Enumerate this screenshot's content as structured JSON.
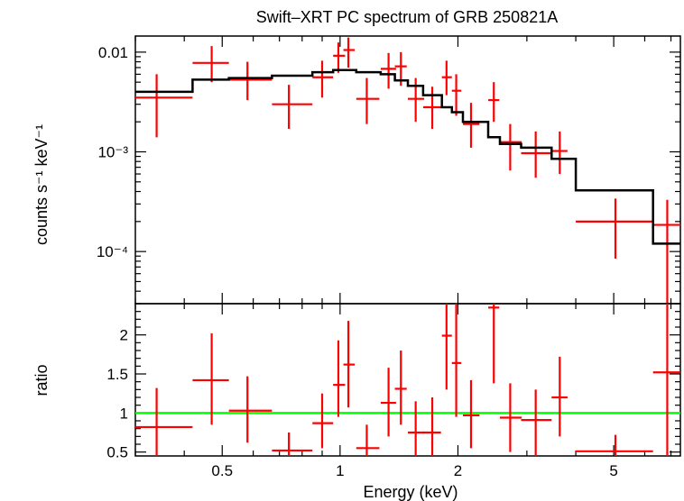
{
  "chart_data": [
    {
      "panel": "spectrum",
      "type": "scatter",
      "title": "Swift–XRT PC spectrum of GRB 250821A",
      "xlabel": "",
      "ylabel": "counts s⁻¹ keV⁻¹",
      "xscale": "log",
      "yscale": "log",
      "xlim": [
        0.3,
        7.4
      ],
      "ylim": [
        3e-05,
        0.0145
      ],
      "y_tick_labels": [
        {
          "value": 0.01,
          "text": "0.01"
        },
        {
          "value": 0.001,
          "text": "10⁻³"
        },
        {
          "value": 0.0001,
          "text": "10⁻⁴"
        }
      ],
      "series": [
        {
          "role": "data",
          "color": "#ff0000",
          "points": [
            {
              "x": 0.34,
              "xlo": 0.3,
              "xhi": 0.42,
              "y": 0.0035,
              "ylo": 0.0014,
              "yhi": 0.006
            },
            {
              "x": 0.47,
              "xlo": 0.42,
              "xhi": 0.52,
              "y": 0.0078,
              "ylo": 0.005,
              "yhi": 0.0115
            },
            {
              "x": 0.58,
              "xlo": 0.52,
              "xhi": 0.67,
              "y": 0.0053,
              "ylo": 0.0033,
              "yhi": 0.008
            },
            {
              "x": 0.74,
              "xlo": 0.67,
              "xhi": 0.85,
              "y": 0.003,
              "ylo": 0.0017,
              "yhi": 0.0047
            },
            {
              "x": 0.9,
              "xlo": 0.85,
              "xhi": 0.96,
              "y": 0.0056,
              "ylo": 0.0035,
              "yhi": 0.0082
            },
            {
              "x": 0.99,
              "xlo": 0.96,
              "xhi": 1.03,
              "y": 0.0092,
              "ylo": 0.0062,
              "yhi": 0.0125
            },
            {
              "x": 1.05,
              "xlo": 1.02,
              "xhi": 1.09,
              "y": 0.0105,
              "ylo": 0.007,
              "yhi": 0.014
            },
            {
              "x": 1.17,
              "xlo": 1.1,
              "xhi": 1.26,
              "y": 0.0034,
              "ylo": 0.0019,
              "yhi": 0.0055
            },
            {
              "x": 1.33,
              "xlo": 1.27,
              "xhi": 1.39,
              "y": 0.0068,
              "ylo": 0.0043,
              "yhi": 0.0098
            },
            {
              "x": 1.43,
              "xlo": 1.38,
              "xhi": 1.48,
              "y": 0.0072,
              "ylo": 0.0046,
              "yhi": 0.01
            },
            {
              "x": 1.56,
              "xlo": 1.49,
              "xhi": 1.64,
              "y": 0.0034,
              "ylo": 0.002,
              "yhi": 0.0055
            },
            {
              "x": 1.72,
              "xlo": 1.63,
              "xhi": 1.81,
              "y": 0.0028,
              "ylo": 0.0017,
              "yhi": 0.0045
            },
            {
              "x": 1.87,
              "xlo": 1.82,
              "xhi": 1.93,
              "y": 0.0056,
              "ylo": 0.0037,
              "yhi": 0.0082
            },
            {
              "x": 1.98,
              "xlo": 1.93,
              "xhi": 2.04,
              "y": 0.0041,
              "ylo": 0.0023,
              "yhi": 0.006
            },
            {
              "x": 2.16,
              "xlo": 2.06,
              "xhi": 2.27,
              "y": 0.0019,
              "ylo": 0.0011,
              "yhi": 0.0031
            },
            {
              "x": 2.47,
              "xlo": 2.39,
              "xhi": 2.55,
              "y": 0.0033,
              "ylo": 0.002,
              "yhi": 0.005
            },
            {
              "x": 2.72,
              "xlo": 2.56,
              "xhi": 2.91,
              "y": 0.00125,
              "ylo": 0.00065,
              "yhi": 0.0019
            },
            {
              "x": 3.16,
              "xlo": 2.9,
              "xhi": 3.47,
              "y": 0.00097,
              "ylo": 0.00055,
              "yhi": 0.0016
            },
            {
              "x": 3.64,
              "xlo": 3.47,
              "xhi": 3.81,
              "y": 0.00102,
              "ylo": 0.0006,
              "yhi": 0.0016
            },
            {
              "x": 5.05,
              "xlo": 4.0,
              "xhi": 6.3,
              "y": 0.0002,
              "ylo": 8.5e-05,
              "yhi": 0.00034
            },
            {
              "x": 6.85,
              "xlo": 6.3,
              "xhi": 7.4,
              "y": 0.000185,
              "ylo": 3e-05,
              "yhi": 0.00033
            }
          ]
        },
        {
          "role": "model",
          "color": "#000000",
          "steps": [
            {
              "x0": 0.3,
              "x1": 0.42,
              "y": 0.004
            },
            {
              "x0": 0.42,
              "x1": 0.52,
              "y": 0.0053
            },
            {
              "x0": 0.52,
              "x1": 0.67,
              "y": 0.0055
            },
            {
              "x0": 0.67,
              "x1": 0.85,
              "y": 0.0058
            },
            {
              "x0": 0.85,
              "x1": 0.96,
              "y": 0.0063
            },
            {
              "x0": 0.96,
              "x1": 1.1,
              "y": 0.0066
            },
            {
              "x0": 1.1,
              "x1": 1.27,
              "y": 0.0063
            },
            {
              "x0": 1.27,
              "x1": 1.38,
              "y": 0.006
            },
            {
              "x0": 1.38,
              "x1": 1.49,
              "y": 0.0052
            },
            {
              "x0": 1.49,
              "x1": 1.63,
              "y": 0.0046
            },
            {
              "x0": 1.63,
              "x1": 1.82,
              "y": 0.0037
            },
            {
              "x0": 1.82,
              "x1": 1.93,
              "y": 0.0028
            },
            {
              "x0": 1.93,
              "x1": 2.06,
              "y": 0.0025
            },
            {
              "x0": 2.06,
              "x1": 2.39,
              "y": 0.002
            },
            {
              "x0": 2.39,
              "x1": 2.56,
              "y": 0.0014
            },
            {
              "x0": 2.56,
              "x1": 2.9,
              "y": 0.0012
            },
            {
              "x0": 2.9,
              "x1": 3.47,
              "y": 0.0011
            },
            {
              "x0": 3.47,
              "x1": 4.0,
              "y": 0.00085
            },
            {
              "x0": 4.0,
              "x1": 6.3,
              "y": 0.00041
            },
            {
              "x0": 6.3,
              "x1": 7.4,
              "y": 0.00012
            }
          ]
        }
      ]
    },
    {
      "panel": "ratio",
      "type": "scatter",
      "title": "",
      "xlabel": "Energy (keV)",
      "ylabel": "ratio",
      "xscale": "log",
      "yscale": "linear",
      "xlim": [
        0.3,
        7.4
      ],
      "ylim": [
        0.45,
        2.4
      ],
      "x_tick_labels": [
        {
          "value": 0.5,
          "text": "0.5"
        },
        {
          "value": 1,
          "text": "1"
        },
        {
          "value": 2,
          "text": "2"
        },
        {
          "value": 5,
          "text": "5"
        }
      ],
      "y_tick_labels": [
        {
          "value": 0.5,
          "text": "0.5"
        },
        {
          "value": 1,
          "text": "1"
        },
        {
          "value": 1.5,
          "text": "1.5"
        },
        {
          "value": 2,
          "text": "2"
        }
      ],
      "reference_line": {
        "y": 1,
        "color": "#00ff00"
      },
      "series": [
        {
          "role": "data",
          "color": "#ff0000",
          "points": [
            {
              "x": 0.34,
              "xlo": 0.3,
              "xhi": 0.42,
              "y": 0.82,
              "ylo": 0.45,
              "yhi": 1.32
            },
            {
              "x": 0.47,
              "xlo": 0.42,
              "xhi": 0.52,
              "y": 1.42,
              "ylo": 0.85,
              "yhi": 2.02
            },
            {
              "x": 0.58,
              "xlo": 0.52,
              "xhi": 0.67,
              "y": 1.03,
              "ylo": 0.62,
              "yhi": 1.47
            },
            {
              "x": 0.74,
              "xlo": 0.67,
              "xhi": 0.85,
              "y": 0.52,
              "ylo": 0.45,
              "yhi": 0.75
            },
            {
              "x": 0.9,
              "xlo": 0.85,
              "xhi": 0.96,
              "y": 0.87,
              "ylo": 0.55,
              "yhi": 1.25
            },
            {
              "x": 0.99,
              "xlo": 0.96,
              "xhi": 1.03,
              "y": 1.36,
              "ylo": 0.95,
              "yhi": 1.93
            },
            {
              "x": 1.05,
              "xlo": 1.02,
              "xhi": 1.09,
              "y": 1.62,
              "ylo": 1.07,
              "yhi": 2.18
            },
            {
              "x": 1.17,
              "xlo": 1.1,
              "xhi": 1.26,
              "y": 0.55,
              "ylo": 0.45,
              "yhi": 0.85
            },
            {
              "x": 1.33,
              "xlo": 1.27,
              "xhi": 1.39,
              "y": 1.13,
              "ylo": 0.7,
              "yhi": 1.58
            },
            {
              "x": 1.43,
              "xlo": 1.38,
              "xhi": 1.48,
              "y": 1.31,
              "ylo": 0.85,
              "yhi": 1.8
            },
            {
              "x": 1.56,
              "xlo": 1.49,
              "xhi": 1.64,
              "y": 0.75,
              "ylo": 0.45,
              "yhi": 1.15
            },
            {
              "x": 1.72,
              "xlo": 1.63,
              "xhi": 1.81,
              "y": 0.75,
              "ylo": 0.45,
              "yhi": 1.2
            },
            {
              "x": 1.87,
              "xlo": 1.82,
              "xhi": 1.93,
              "y": 1.99,
              "ylo": 1.3,
              "yhi": 2.4
            },
            {
              "x": 1.98,
              "xlo": 1.93,
              "xhi": 2.04,
              "y": 1.64,
              "ylo": 0.95,
              "yhi": 2.4
            },
            {
              "x": 2.16,
              "xlo": 2.06,
              "xhi": 2.27,
              "y": 0.97,
              "ylo": 0.55,
              "yhi": 1.42
            },
            {
              "x": 2.47,
              "xlo": 2.39,
              "xhi": 2.55,
              "y": 2.35,
              "ylo": 1.38,
              "yhi": 2.4
            },
            {
              "x": 2.72,
              "xlo": 2.56,
              "xhi": 2.91,
              "y": 0.94,
              "ylo": 0.5,
              "yhi": 1.38
            },
            {
              "x": 3.16,
              "xlo": 2.9,
              "xhi": 3.47,
              "y": 0.91,
              "ylo": 0.45,
              "yhi": 1.3
            },
            {
              "x": 3.64,
              "xlo": 3.47,
              "xhi": 3.81,
              "y": 1.2,
              "ylo": 0.7,
              "yhi": 1.72
            },
            {
              "x": 5.05,
              "xlo": 4.0,
              "xhi": 6.3,
              "y": 0.51,
              "ylo": 0.45,
              "yhi": 0.72
            },
            {
              "x": 6.85,
              "xlo": 6.3,
              "xhi": 7.4,
              "y": 1.52,
              "ylo": 0.45,
              "yhi": 2.4
            }
          ]
        }
      ]
    }
  ]
}
